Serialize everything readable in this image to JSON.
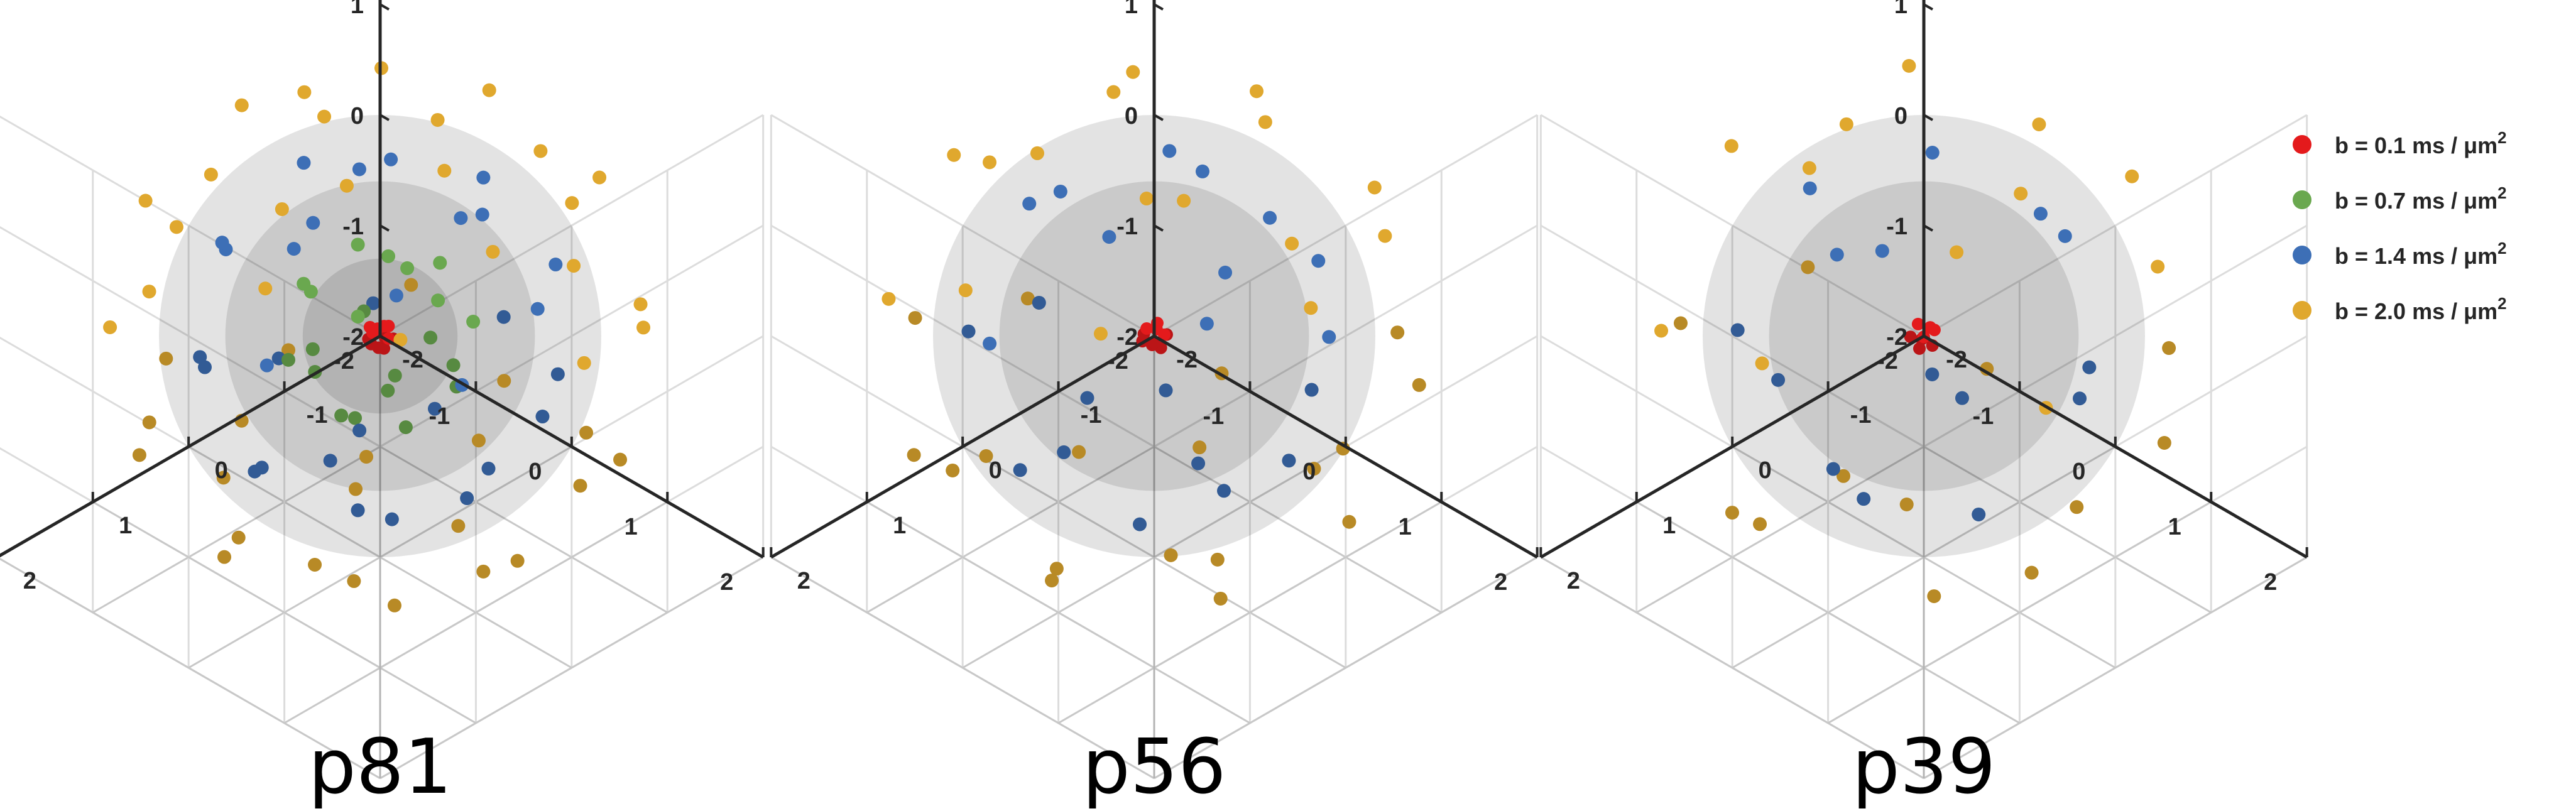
{
  "chart_data": [
    {
      "type": "scatter",
      "title": "p81",
      "projection": "3d",
      "xlim": [
        -2,
        2
      ],
      "ylim": [
        -2,
        2
      ],
      "zlim": [
        -2,
        2
      ],
      "ticks": [
        "-2",
        "-1",
        "0",
        "1",
        "2"
      ],
      "grid": true,
      "shells": [
        {
          "radius": 0.7
        },
        {
          "radius": 1.4
        },
        {
          "radius": 2.0
        }
      ],
      "series": [
        {
          "name": "b = 0.1 ms / μm²",
          "color": "#e41a1c",
          "radius": 0.1,
          "points": 12
        },
        {
          "name": "b = 0.7 ms / μm²",
          "color": "#6aa84f",
          "radius": 0.7,
          "points": 21
        },
        {
          "name": "b = 1.4 ms / μm²",
          "color": "#3d6fb6",
          "radius": 1.4,
          "points": 31
        },
        {
          "name": "b = 2.0 ms / μm²",
          "color": "#e0a82e",
          "radius": 2.0,
          "points": 46
        }
      ]
    },
    {
      "type": "scatter",
      "title": "p56",
      "projection": "3d",
      "xlim": [
        -2,
        2
      ],
      "ylim": [
        -2,
        2
      ],
      "zlim": [
        -2,
        2
      ],
      "ticks": [
        "-2",
        "-1",
        "0",
        "1",
        "2"
      ],
      "grid": true,
      "shells": [
        {
          "radius": 1.4
        },
        {
          "radius": 2.0
        }
      ],
      "series": [
        {
          "name": "b = 0.1 ms / μm²",
          "color": "#e41a1c",
          "radius": 0.1,
          "points": 10
        },
        {
          "name": "b = 1.4 ms / μm²",
          "color": "#3d6fb6",
          "radius": 1.4,
          "points": 22
        },
        {
          "name": "b = 2.0 ms / μm²",
          "color": "#e0a82e",
          "radius": 2.0,
          "points": 34
        }
      ]
    },
    {
      "type": "scatter",
      "title": "p39",
      "projection": "3d",
      "xlim": [
        -2,
        2
      ],
      "ylim": [
        -2,
        2
      ],
      "zlim": [
        -2,
        2
      ],
      "ticks": [
        "-2",
        "-1",
        "0",
        "1",
        "2"
      ],
      "grid": true,
      "shells": [
        {
          "radius": 1.4
        },
        {
          "radius": 2.0
        }
      ],
      "series": [
        {
          "name": "b = 0.1 ms / μm²",
          "color": "#e41a1c",
          "radius": 0.1,
          "points": 8
        },
        {
          "name": "b = 1.4 ms / μm²",
          "color": "#3d6fb6",
          "radius": 1.4,
          "points": 15
        },
        {
          "name": "b = 2.0 ms / μm²",
          "color": "#e0a82e",
          "radius": 2.0,
          "points": 24
        }
      ]
    }
  ],
  "legend": {
    "position": "right",
    "entries": [
      {
        "prefix": "b = 0.1 ms / ",
        "unit": "μm",
        "exp": "2",
        "color": "#e41a1c"
      },
      {
        "prefix": "b = 0.7 ms / ",
        "unit": "μm",
        "exp": "2",
        "color": "#6aa84f"
      },
      {
        "prefix": "b = 1.4 ms / ",
        "unit": "μm",
        "exp": "2",
        "color": "#3d6fb6"
      },
      {
        "prefix": "b = 2.0 ms / ",
        "unit": "μm",
        "exp": "2",
        "color": "#e0a82e"
      }
    ]
  }
}
